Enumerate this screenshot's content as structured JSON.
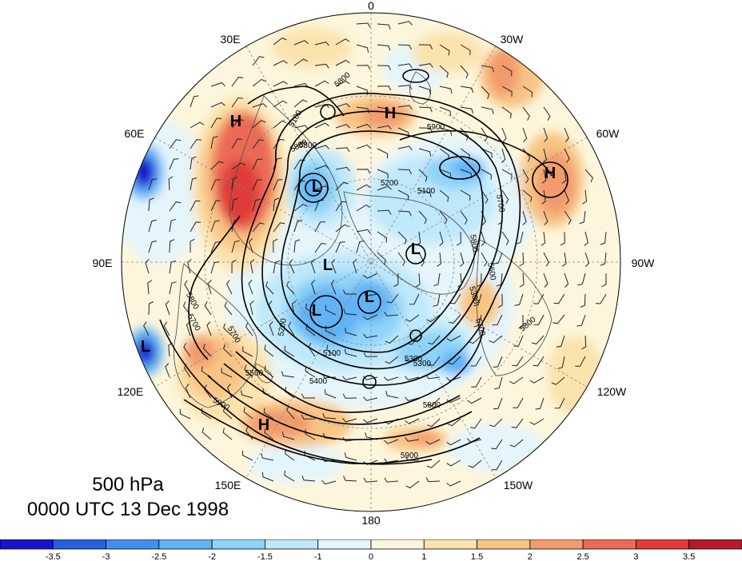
{
  "title": {
    "level": "500 hPa",
    "time": "0000 UTC 13 Dec 1998"
  },
  "longitude_labels": [
    {
      "id": "lon-0",
      "text": "0"
    },
    {
      "id": "lon-30w",
      "text": "30W"
    },
    {
      "id": "lon-60w",
      "text": "60W"
    },
    {
      "id": "lon-90w",
      "text": "90W"
    },
    {
      "id": "lon-120w",
      "text": "120W"
    },
    {
      "id": "lon-150w",
      "text": "150W"
    },
    {
      "id": "lon-180",
      "text": "180"
    },
    {
      "id": "lon-150e",
      "text": "150E"
    },
    {
      "id": "lon-120e",
      "text": "120E"
    },
    {
      "id": "lon-90e",
      "text": "90E"
    },
    {
      "id": "lon-60e",
      "text": "60E"
    },
    {
      "id": "lon-30e",
      "text": "30E"
    }
  ],
  "pressure_centers": [
    {
      "text": "H"
    },
    {
      "text": "H"
    },
    {
      "text": "H"
    },
    {
      "text": "H"
    },
    {
      "text": "L"
    },
    {
      "text": "L"
    },
    {
      "text": "L"
    },
    {
      "text": "L"
    },
    {
      "text": "L"
    },
    {
      "text": "L"
    }
  ],
  "contour_labels": [
    "5800",
    "5100",
    "5800",
    "5200",
    "5100",
    "5300",
    "5900",
    "5800",
    "5700",
    "5800",
    "5600",
    "5300",
    "5700",
    "5800",
    "5200",
    "5700",
    "5500",
    "5100",
    "5300",
    "5400",
    "5900",
    "5800",
    "5900",
    "5700",
    "5800"
  ],
  "colorbar": {
    "colors": [
      "#1515d0",
      "#2a5fe0",
      "#3f8ff0",
      "#62b2f6",
      "#8ed3f8",
      "#bfe8fb",
      "#e4f5fb",
      "#fdf6dc",
      "#fbe3ae",
      "#f8c484",
      "#f29b6e",
      "#ec6a55",
      "#df3a38",
      "#b8192a"
    ],
    "tick_labels": [
      "-3.5",
      "-3",
      "-2.5",
      "-2",
      "-1.5",
      "-1",
      "0",
      "1",
      "1.5",
      "2",
      "2.5",
      "3",
      "3.5"
    ]
  },
  "colors": {
    "land_outline": "#555555",
    "contour": "#000000",
    "wind_barb": "#222222"
  }
}
